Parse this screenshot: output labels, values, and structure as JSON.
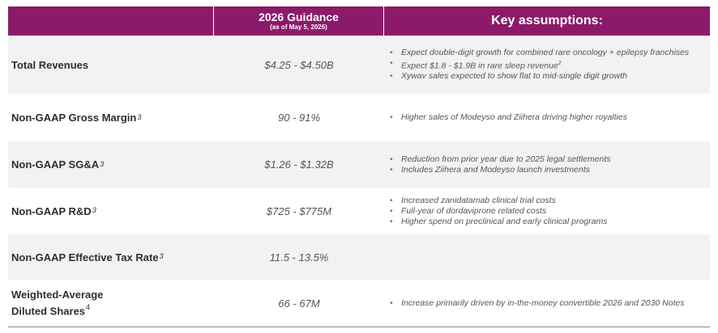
{
  "header": {
    "guidance_title": "2026 Guidance",
    "guidance_subtitle": "(as of May 5, 2026)",
    "assumptions_title": "Key assumptions:"
  },
  "rows": [
    {
      "metric": "Total Revenues",
      "footnote": "",
      "guidance": "$4.25 - $4.50B",
      "assumptions": [
        "Expect double-digit growth for combined rare oncology + epilepsy franchises",
        "Expect $1.8 - $1.9B in rare sleep revenue",
        "Xywav sales expected to show flat to mid-single digit growth"
      ],
      "assumption_footnote_1": "2"
    },
    {
      "metric": "Non-GAAP Gross Margin",
      "footnote": "3",
      "guidance": "90 - 91%",
      "assumptions": [
        "Higher sales of Modeyso and Ziihera driving higher royalties"
      ]
    },
    {
      "metric": "Non-GAAP SG&A",
      "footnote": "3",
      "guidance": "$1.26 - $1.32B",
      "assumptions": [
        "Reduction from prior year due to 2025 legal settlements",
        "Includes Ziihera and Modeyso launch investments"
      ]
    },
    {
      "metric": "Non-GAAP R&D",
      "footnote": "3",
      "guidance": "$725 - $775M",
      "assumptions": [
        "Increased zanidatamab clinical trial costs",
        "Full-year of dordaviprone related costs",
        "Higher spend on preclinical and early clinical programs"
      ]
    },
    {
      "metric": "Non-GAAP Effective Tax Rate",
      "footnote": "3",
      "guidance": "11.5 - 13.5%",
      "assumptions": []
    },
    {
      "metric_line1": "Weighted-Average",
      "metric_line2": "Diluted Shares",
      "footnote": "4",
      "guidance": "66 - 67M",
      "assumptions": [
        "Increase primarily driven by in-the-money convertible 2026 and 2030 Notes"
      ]
    }
  ],
  "colors": {
    "header_bg": "#8c1a6a",
    "shaded_row": "#f2f2f2"
  }
}
